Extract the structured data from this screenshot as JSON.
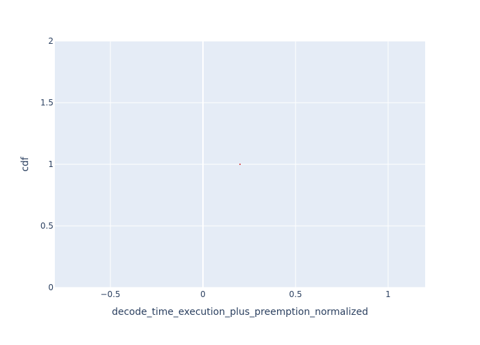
{
  "chart_data": {
    "type": "scatter",
    "title": "",
    "xlabel": "decode_time_execution_plus_preemption_normalized",
    "ylabel": "cdf",
    "xlim": [
      -0.8,
      1.2
    ],
    "ylim": [
      0,
      2
    ],
    "x_ticks": [
      {
        "value": -0.5,
        "label": "−0.5"
      },
      {
        "value": 0,
        "label": "0"
      },
      {
        "value": 0.5,
        "label": "0.5"
      },
      {
        "value": 1,
        "label": "1"
      }
    ],
    "y_ticks": [
      {
        "value": 0,
        "label": "0"
      },
      {
        "value": 0.5,
        "label": "0.5"
      },
      {
        "value": 1,
        "label": "1"
      },
      {
        "value": 1.5,
        "label": "1.5"
      },
      {
        "value": 2,
        "label": "2"
      }
    ],
    "series": [
      {
        "color": "#d62728",
        "x": [
          0.2
        ],
        "y": [
          1
        ]
      }
    ],
    "grid": true,
    "legend": "none",
    "colors": {
      "plot_background": "#e5ecf6",
      "grid": "#ffffff",
      "text": "#2a3f5f"
    }
  }
}
